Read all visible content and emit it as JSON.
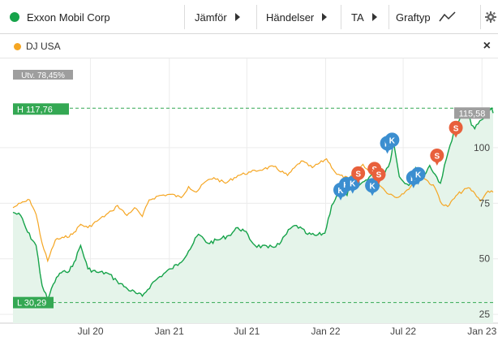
{
  "toolbar": {
    "instrument": "Exxon Mobil Corp",
    "instrument_color": "#16a34a",
    "compare": "Jämför",
    "events": "Händelser",
    "ta": "TA",
    "graph_type": "Graftyp"
  },
  "legend": {
    "comparison_name": "DJ USA",
    "comparison_color": "#f5a623"
  },
  "chart_data": {
    "type": "line",
    "x_ticks": [
      "Jul 20",
      "Jan 21",
      "Jul 21",
      "Jan 22",
      "Jul 22",
      "Jan 23"
    ],
    "y_ticks": [
      25,
      50,
      75,
      100
    ],
    "ylim": [
      22.5,
      127
    ],
    "series": [
      {
        "name": "Exxon Mobil Corp",
        "color": "#16a34a",
        "values": [
          [
            "2020-01-02",
            70.9
          ],
          [
            "2020-01-20",
            69.5
          ],
          [
            "2020-02-05",
            62.0
          ],
          [
            "2020-02-25",
            56.0
          ],
          [
            "2020-03-10",
            38.0
          ],
          [
            "2020-03-23",
            31.5
          ],
          [
            "2020-04-05",
            38.5
          ],
          [
            "2020-04-20",
            43.5
          ],
          [
            "2020-05-05",
            44.0
          ],
          [
            "2020-05-20",
            46.5
          ],
          [
            "2020-06-08",
            56.0
          ],
          [
            "2020-06-25",
            45.5
          ],
          [
            "2020-07-15",
            44.0
          ],
          [
            "2020-08-10",
            43.5
          ],
          [
            "2020-09-01",
            40.0
          ],
          [
            "2020-09-25",
            36.5
          ],
          [
            "2020-10-15",
            34.5
          ],
          [
            "2020-10-30",
            33.2
          ],
          [
            "2020-11-20",
            38.5
          ],
          [
            "2020-12-10",
            42.0
          ],
          [
            "2021-01-05",
            45.5
          ],
          [
            "2021-01-25",
            48.0
          ],
          [
            "2021-02-15",
            53.5
          ],
          [
            "2021-03-10",
            61.0
          ],
          [
            "2021-04-01",
            57.0
          ],
          [
            "2021-04-25",
            58.5
          ],
          [
            "2021-05-20",
            60.5
          ],
          [
            "2021-06-10",
            64.0
          ],
          [
            "2021-06-25",
            62.5
          ],
          [
            "2021-07-20",
            56.0
          ],
          [
            "2021-08-20",
            55.0
          ],
          [
            "2021-09-15",
            56.5
          ],
          [
            "2021-10-10",
            63.5
          ],
          [
            "2021-10-25",
            65.0
          ],
          [
            "2021-11-20",
            61.0
          ],
          [
            "2021-12-10",
            60.5
          ],
          [
            "2021-12-30",
            61.5
          ],
          [
            "2022-01-15",
            74.0
          ],
          [
            "2022-02-01",
            80.0
          ],
          [
            "2022-02-20",
            78.5
          ],
          [
            "2022-03-08",
            89.0
          ],
          [
            "2022-03-20",
            83.0
          ],
          [
            "2022-04-05",
            85.5
          ],
          [
            "2022-04-20",
            88.0
          ],
          [
            "2022-05-10",
            85.5
          ],
          [
            "2022-06-01",
            94.0
          ],
          [
            "2022-06-08",
            103.0
          ],
          [
            "2022-06-22",
            87.0
          ],
          [
            "2022-07-14",
            83.0
          ],
          [
            "2022-07-30",
            91.0
          ],
          [
            "2022-08-15",
            86.0
          ],
          [
            "2022-09-01",
            92.0
          ],
          [
            "2022-09-26",
            84.0
          ],
          [
            "2022-10-10",
            95.0
          ],
          [
            "2022-10-31",
            110.0
          ],
          [
            "2022-11-15",
            114.0
          ],
          [
            "2022-11-30",
            113.5
          ],
          [
            "2022-12-15",
            108.5
          ],
          [
            "2022-12-31",
            112.5
          ],
          [
            "2023-01-15",
            115.5
          ],
          [
            "2023-01-24",
            117.76
          ],
          [
            "2023-01-27",
            115.58
          ]
        ]
      },
      {
        "name": "DJ USA",
        "color": "#f5a623",
        "values": [
          [
            "2020-01-02",
            73.0
          ],
          [
            "2020-01-20",
            75.0
          ],
          [
            "2020-02-10",
            76.5
          ],
          [
            "2020-02-25",
            70.0
          ],
          [
            "2020-03-10",
            57.0
          ],
          [
            "2020-03-23",
            49.0
          ],
          [
            "2020-04-10",
            58.5
          ],
          [
            "2020-04-30",
            59.5
          ],
          [
            "2020-05-20",
            61.0
          ],
          [
            "2020-06-08",
            65.5
          ],
          [
            "2020-06-25",
            64.0
          ],
          [
            "2020-07-20",
            67.5
          ],
          [
            "2020-08-20",
            71.5
          ],
          [
            "2020-09-02",
            74.0
          ],
          [
            "2020-09-24",
            69.5
          ],
          [
            "2020-10-12",
            73.0
          ],
          [
            "2020-10-30",
            69.0
          ],
          [
            "2020-11-15",
            76.5
          ],
          [
            "2020-12-10",
            78.5
          ],
          [
            "2021-01-05",
            79.0
          ],
          [
            "2021-01-29",
            77.5
          ],
          [
            "2021-02-15",
            82.5
          ],
          [
            "2021-03-05",
            80.0
          ],
          [
            "2021-03-25",
            84.5
          ],
          [
            "2021-04-15",
            86.5
          ],
          [
            "2021-05-12",
            84.0
          ],
          [
            "2021-06-10",
            87.5
          ],
          [
            "2021-07-10",
            89.0
          ],
          [
            "2021-08-10",
            90.5
          ],
          [
            "2021-09-02",
            91.5
          ],
          [
            "2021-10-04",
            87.5
          ],
          [
            "2021-11-05",
            94.0
          ],
          [
            "2021-12-01",
            91.0
          ],
          [
            "2022-01-03",
            95.0
          ],
          [
            "2022-01-27",
            88.0
          ],
          [
            "2022-02-24",
            86.0
          ],
          [
            "2022-03-29",
            92.5
          ],
          [
            "2022-04-20",
            87.5
          ],
          [
            "2022-05-20",
            80.5
          ],
          [
            "2022-06-16",
            77.5
          ],
          [
            "2022-07-10",
            81.0
          ],
          [
            "2022-08-16",
            87.0
          ],
          [
            "2022-09-13",
            82.0
          ],
          [
            "2022-09-30",
            74.5
          ],
          [
            "2022-10-13",
            73.5
          ],
          [
            "2022-11-05",
            79.0
          ],
          [
            "2022-11-30",
            82.0
          ],
          [
            "2022-12-15",
            79.5
          ],
          [
            "2022-12-28",
            76.0
          ],
          [
            "2023-01-15",
            80.5
          ],
          [
            "2023-01-27",
            80.0
          ]
        ]
      }
    ],
    "high": {
      "label": "H 117,76",
      "value": 117.76,
      "change_label": "Utv. 78,45%"
    },
    "low": {
      "label": "L 30,29",
      "value": 30.29
    },
    "last": {
      "label": "115,58",
      "value": 115.58
    },
    "events": [
      {
        "type": "K",
        "date": "2022-02-05",
        "value": 81.0
      },
      {
        "type": "K",
        "date": "2022-02-18",
        "value": 83.5
      },
      {
        "type": "K",
        "date": "2022-03-05",
        "value": 84.0
      },
      {
        "type": "S",
        "date": "2022-03-18",
        "value": 88.5
      },
      {
        "type": "K",
        "date": "2022-04-20",
        "value": 83.0
      },
      {
        "type": "S",
        "date": "2022-04-25",
        "value": 90.5
      },
      {
        "type": "S",
        "date": "2022-05-05",
        "value": 88.0
      },
      {
        "type": "K",
        "date": "2022-05-25",
        "value": 102.0
      },
      {
        "type": "K",
        "date": "2022-06-05",
        "value": 103.5
      },
      {
        "type": "K",
        "date": "2022-07-25",
        "value": 86.5
      },
      {
        "type": "K",
        "date": "2022-08-05",
        "value": 88.0
      },
      {
        "type": "S",
        "date": "2022-09-18",
        "value": 96.5
      },
      {
        "type": "S",
        "date": "2022-11-01",
        "value": 109.0
      }
    ]
  }
}
